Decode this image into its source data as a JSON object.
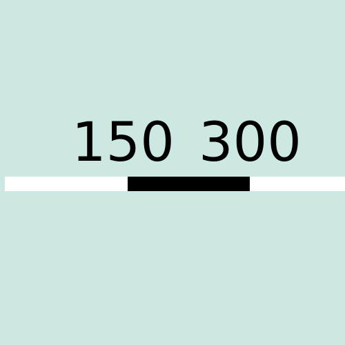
{
  "background_color": "#cde8e3",
  "scale_bar": {
    "labels": [
      "150",
      "300"
    ],
    "segments": [
      {
        "color": "#ffffff"
      },
      {
        "color": "#000000"
      },
      {
        "color": "#ffffff"
      }
    ]
  }
}
